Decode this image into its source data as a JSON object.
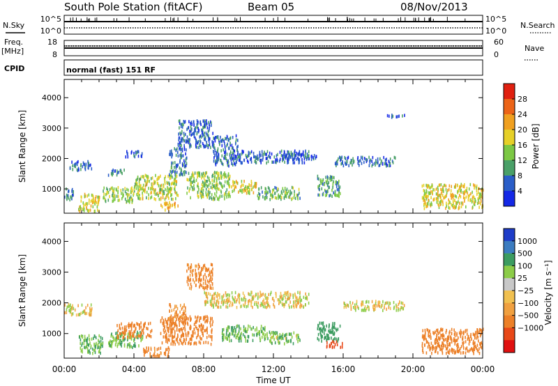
{
  "header": {
    "title": "South Pole Station (fitACF)",
    "beam": "Beam 05",
    "date": "08/Nov/2013"
  },
  "top_panels": {
    "nsky": {
      "label": "N.Sky",
      "ticks": [
        "10^5",
        "10^0"
      ]
    },
    "nsearch": {
      "label": "N.Search"
    },
    "freq": {
      "label_line1": "Freq.",
      "label_line2": "[MHz]",
      "ticks": [
        "18",
        "8"
      ]
    },
    "nave": {
      "label": "Nave",
      "ticks": [
        "60",
        "0"
      ]
    },
    "cpid": {
      "label": "CPID",
      "mode": "normal (fast) 151 RF"
    }
  },
  "axes": {
    "ylabel": "Slant Range [km]",
    "xlabel": "Time UT",
    "y_ticks": [
      "1000",
      "2000",
      "3000",
      "4000"
    ],
    "x_ticks": [
      "00:00",
      "04:00",
      "08:00",
      "12:00",
      "16:00",
      "20:00",
      "00:00"
    ]
  },
  "power_colorbar": {
    "label": "Power [dB]",
    "ticks": [
      "4",
      "8",
      "12",
      "16",
      "20",
      "24",
      "28"
    ],
    "colors": [
      "#1428e6",
      "#2a5ec8",
      "#4aa068",
      "#7cc844",
      "#e6d028",
      "#f0a020",
      "#ec6418",
      "#e02010"
    ]
  },
  "velocity_colorbar": {
    "label": "Velocity [m s⁻¹]",
    "ticks": [
      "1000",
      "500",
      "100",
      "25",
      "−25",
      "−100",
      "−500",
      "−1000"
    ],
    "colors": [
      "#1e3cc8",
      "#3c7cc0",
      "#3c9c60",
      "#8ccc48",
      "#c8c8c8",
      "#f0c050",
      "#f0a040",
      "#ec8028",
      "#e84818",
      "#e01010"
    ]
  },
  "chart_data": [
    {
      "type": "heatmap",
      "name": "power",
      "title": "South Pole Station (fitACF)",
      "xlabel": "Time UT",
      "ylabel": "Slant Range [km]",
      "xlim": [
        0,
        24
      ],
      "ylim": [
        200,
        4600
      ],
      "colorbar_label": "Power [dB]",
      "colorbar_range": [
        0,
        32
      ],
      "regions": [
        {
          "t": [
            0.0,
            0.5
          ],
          "r": [
            650,
            1100
          ],
          "value": 8
        },
        {
          "t": [
            0.3,
            1.6
          ],
          "r": [
            1650,
            1950
          ],
          "value": 6
        },
        {
          "t": [
            0.8,
            2.0
          ],
          "r": [
            300,
            900
          ],
          "value": 18
        },
        {
          "t": [
            2.2,
            4.0
          ],
          "r": [
            600,
            1100
          ],
          "value": 14
        },
        {
          "t": [
            2.5,
            3.5
          ],
          "r": [
            1500,
            1700
          ],
          "value": 8
        },
        {
          "t": [
            3.5,
            4.5
          ],
          "r": [
            2100,
            2300
          ],
          "value": 6
        },
        {
          "t": [
            4.0,
            6.5
          ],
          "r": [
            700,
            1500
          ],
          "value": 16
        },
        {
          "t": [
            5.5,
            6.5
          ],
          "r": [
            350,
            600
          ],
          "value": 20
        },
        {
          "t": [
            6.0,
            7.0
          ],
          "r": [
            1500,
            2400
          ],
          "value": 8
        },
        {
          "t": [
            6.5,
            8.5
          ],
          "r": [
            2400,
            3300
          ],
          "value": 6
        },
        {
          "t": [
            7.0,
            9.5
          ],
          "r": [
            700,
            1600
          ],
          "value": 14
        },
        {
          "t": [
            8.5,
            10.0
          ],
          "r": [
            1800,
            2800
          ],
          "value": 6
        },
        {
          "t": [
            9.5,
            11.0
          ],
          "r": [
            900,
            1300
          ],
          "value": 18
        },
        {
          "t": [
            11.0,
            13.5
          ],
          "r": [
            700,
            1100
          ],
          "value": 12
        },
        {
          "t": [
            10.0,
            14.0
          ],
          "r": [
            1900,
            2300
          ],
          "value": 6
        },
        {
          "t": [
            12.5,
            14.5
          ],
          "r": [
            2000,
            2200
          ],
          "value": 6
        },
        {
          "t": [
            14.5,
            15.8
          ],
          "r": [
            800,
            1500
          ],
          "value": 10
        },
        {
          "t": [
            15.5,
            19.0
          ],
          "r": [
            1800,
            2100
          ],
          "value": 6
        },
        {
          "t": [
            18.5,
            19.5
          ],
          "r": [
            3400,
            3500
          ],
          "value": 6
        },
        {
          "t": [
            20.5,
            24.0
          ],
          "r": [
            400,
            1200
          ],
          "value": 18
        }
      ]
    },
    {
      "type": "heatmap",
      "name": "velocity",
      "xlabel": "Time UT",
      "ylabel": "Slant Range [km]",
      "xlim": [
        0,
        24
      ],
      "ylim": [
        200,
        4600
      ],
      "colorbar_label": "Velocity [m s⁻¹]",
      "colorbar_ticks": [
        1000,
        500,
        100,
        25,
        -25,
        -100,
        -500,
        -1000
      ],
      "regions": [
        {
          "t": [
            0.0,
            1.6
          ],
          "r": [
            1650,
            2000
          ],
          "value": 0
        },
        {
          "t": [
            0.8,
            2.2
          ],
          "r": [
            400,
            1000
          ],
          "value": 100
        },
        {
          "t": [
            2.5,
            4.5
          ],
          "r": [
            600,
            1100
          ],
          "value": 100
        },
        {
          "t": [
            3.0,
            5.0
          ],
          "r": [
            900,
            1400
          ],
          "value": -200
        },
        {
          "t": [
            4.5,
            6.0
          ],
          "r": [
            300,
            600
          ],
          "value": -150
        },
        {
          "t": [
            5.5,
            8.5
          ],
          "r": [
            700,
            1600
          ],
          "value": -250
        },
        {
          "t": [
            7.0,
            8.5
          ],
          "r": [
            2500,
            3300
          ],
          "value": -150
        },
        {
          "t": [
            6.0,
            7.0
          ],
          "r": [
            1500,
            2000
          ],
          "value": -100
        },
        {
          "t": [
            9.0,
            11.5
          ],
          "r": [
            800,
            1300
          ],
          "value": 100
        },
        {
          "t": [
            8.0,
            14.0
          ],
          "r": [
            1900,
            2400
          ],
          "value": 0
        },
        {
          "t": [
            11.5,
            13.5
          ],
          "r": [
            700,
            1100
          ],
          "value": 80
        },
        {
          "t": [
            14.5,
            15.8
          ],
          "r": [
            800,
            1400
          ],
          "value": 400
        },
        {
          "t": [
            15.0,
            16.0
          ],
          "r": [
            600,
            800
          ],
          "value": -600
        },
        {
          "t": [
            16.0,
            19.5
          ],
          "r": [
            1800,
            2100
          ],
          "value": 0
        },
        {
          "t": [
            20.5,
            24.0
          ],
          "r": [
            400,
            1200
          ],
          "value": -200
        }
      ]
    }
  ]
}
